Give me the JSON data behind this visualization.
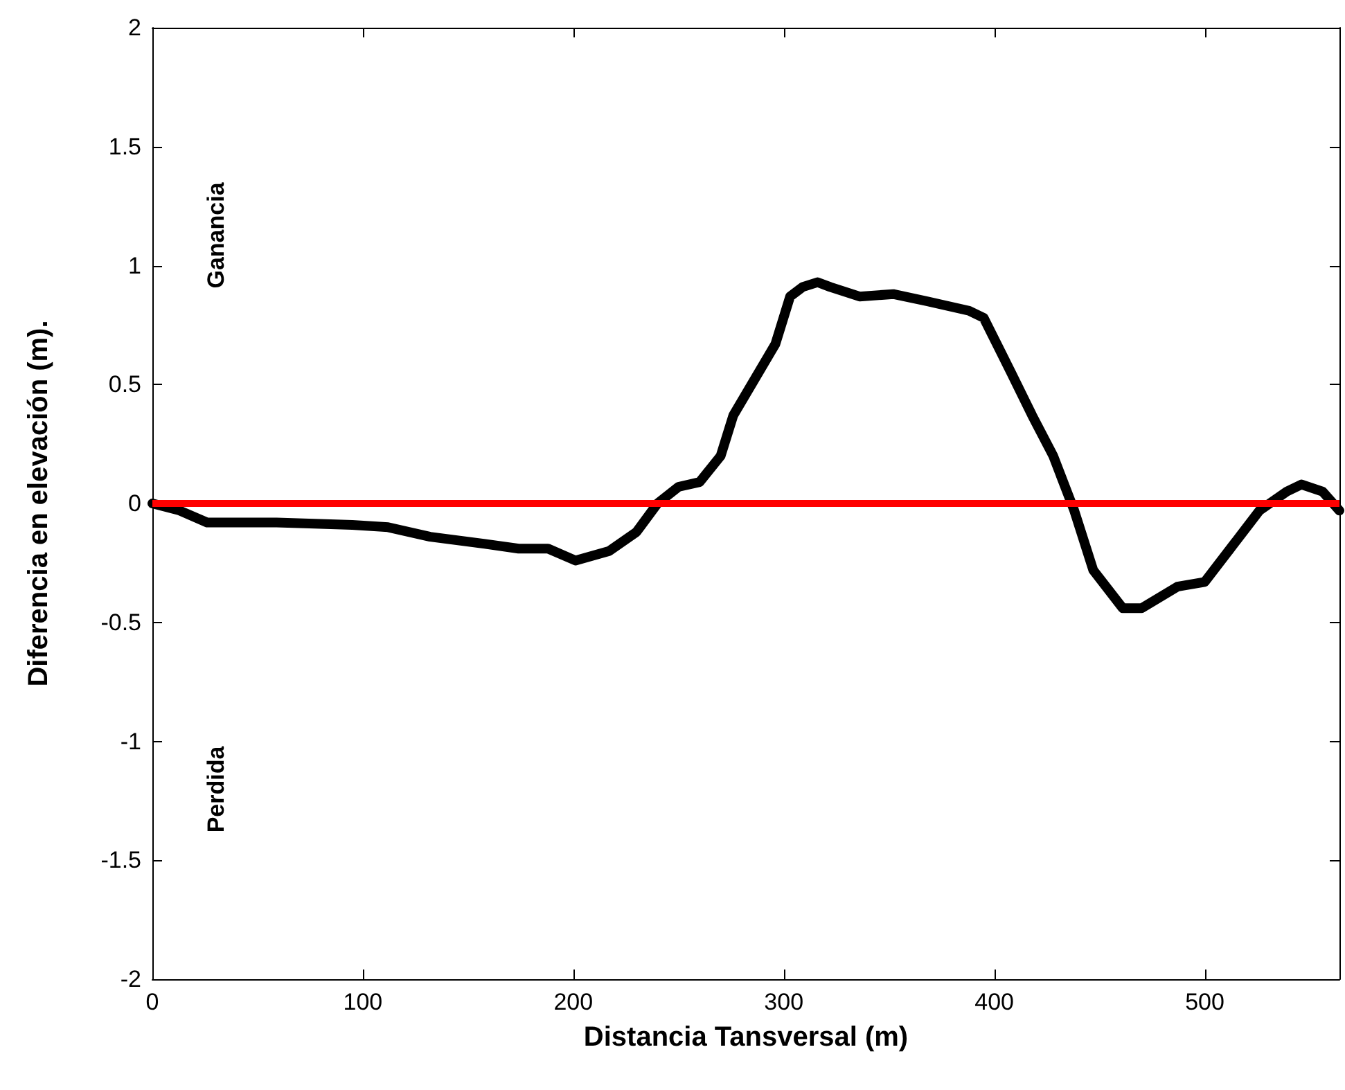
{
  "chart_data": {
    "type": "line",
    "xlabel": "Distancia Tansversal (m)",
    "ylabel": "Diferencia en elevación (m).",
    "annotations": [
      "Ganancia",
      "Perdida"
    ],
    "xlim": [
      0,
      564
    ],
    "xticks": [
      0,
      100,
      200,
      300,
      400,
      500
    ],
    "ylim": [
      -2,
      2
    ],
    "yticks": [
      -2,
      -1.5,
      -1,
      -0.5,
      0,
      0.5,
      1,
      1.5,
      2
    ],
    "grid": false,
    "line_style": "solid",
    "ref_lines": [
      {
        "axis": "y",
        "value": 0,
        "color": "#ff0000",
        "line_style": "solid"
      }
    ],
    "series": [
      {
        "color": "#000000",
        "x": [
          0,
          13,
          26,
          59,
          95,
          112,
          132,
          158,
          174,
          188,
          201,
          217,
          230,
          240,
          250,
          260,
          270,
          276,
          286,
          296,
          303,
          309,
          316,
          322,
          336,
          352,
          368,
          388,
          395,
          408,
          418,
          428,
          438,
          447,
          461,
          470,
          487,
          500,
          513,
          526,
          539,
          546,
          556,
          564
        ],
        "values": [
          0,
          -0.03,
          -0.08,
          -0.08,
          -0.09,
          -0.1,
          -0.14,
          -0.17,
          -0.19,
          -0.19,
          -0.24,
          -0.2,
          -0.12,
          0,
          0.07,
          0.09,
          0.2,
          0.37,
          0.52,
          0.67,
          0.87,
          0.91,
          0.93,
          0.91,
          0.87,
          0.88,
          0.85,
          0.81,
          0.78,
          0.55,
          0.37,
          0.2,
          -0.03,
          -0.28,
          -0.44,
          -0.44,
          -0.35,
          -0.33,
          -0.18,
          -0.03,
          0.05,
          0.08,
          0.05,
          -0.03
        ]
      }
    ]
  }
}
